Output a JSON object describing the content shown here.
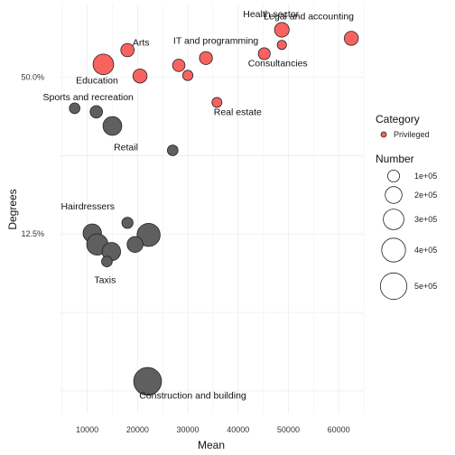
{
  "chart_data": {
    "type": "scatter",
    "xlabel": "Mean",
    "ylabel": "Degrees",
    "xlim": [
      4500,
      65000
    ],
    "ylim": [
      0.0256,
      0.95
    ],
    "y_scale": "log",
    "x_ticks": [
      {
        "value": 10000,
        "label": "10000"
      },
      {
        "value": 20000,
        "label": "20000"
      },
      {
        "value": 30000,
        "label": "30000"
      },
      {
        "value": 40000,
        "label": "40000"
      },
      {
        "value": 50000,
        "label": "50000"
      },
      {
        "value": 60000,
        "label": "60000"
      }
    ],
    "y_ticks": [
      {
        "value": 0.125,
        "label": "12.5%"
      },
      {
        "value": 0.5,
        "label": "50.0%"
      }
    ],
    "grid": true,
    "colors": {
      "privileged": "#f8635f",
      "other": "#5f5f5f",
      "outline": "#222222",
      "grid": "#ececec"
    },
    "points": [
      {
        "label": "Health sector",
        "x": 48700,
        "y": 0.76,
        "number": 150000,
        "category": "privileged"
      },
      {
        "label": "Legal and accounting",
        "x": 62500,
        "y": 0.705,
        "number": 140000,
        "category": "privileged"
      },
      {
        "label": "Arts",
        "x": 18000,
        "y": 0.635,
        "number": 125000,
        "category": "privileged"
      },
      {
        "label": "IT and programming",
        "x": 33600,
        "y": 0.592,
        "number": 120000,
        "category": "privileged"
      },
      {
        "label": "Consultancies",
        "x": 45200,
        "y": 0.615,
        "number": 100000,
        "category": "privileged"
      },
      {
        "label": "",
        "x": 48700,
        "y": 0.665,
        "number": 60000,
        "category": "privileged"
      },
      {
        "label": "",
        "x": 28200,
        "y": 0.555,
        "number": 110000,
        "category": "privileged"
      },
      {
        "label": "Education",
        "x": 13200,
        "y": 0.56,
        "number": 300000,
        "category": "privileged"
      },
      {
        "label": "",
        "x": 20500,
        "y": 0.505,
        "number": 140000,
        "category": "privileged"
      },
      {
        "label": "",
        "x": 30000,
        "y": 0.508,
        "number": 75000,
        "category": "privileged"
      },
      {
        "label": "Real estate",
        "x": 35800,
        "y": 0.4,
        "number": 70000,
        "category": "privileged"
      },
      {
        "label": "Sports and recreation",
        "x": 7500,
        "y": 0.38,
        "number": 80000,
        "category": "other"
      },
      {
        "label": "",
        "x": 11800,
        "y": 0.368,
        "number": 110000,
        "category": "other"
      },
      {
        "label": "Retail",
        "x": 15000,
        "y": 0.325,
        "number": 250000,
        "category": "other"
      },
      {
        "label": "",
        "x": 27000,
        "y": 0.262,
        "number": 80000,
        "category": "other"
      },
      {
        "label": "Hairdressers",
        "x": 18000,
        "y": 0.138,
        "number": 90000,
        "category": "other"
      },
      {
        "label": "",
        "x": 11000,
        "y": 0.126,
        "number": 240000,
        "category": "other"
      },
      {
        "label": "",
        "x": 12000,
        "y": 0.114,
        "number": 320000,
        "category": "other"
      },
      {
        "label": "",
        "x": 22200,
        "y": 0.124,
        "number": 380000,
        "category": "other"
      },
      {
        "label": "",
        "x": 19500,
        "y": 0.114,
        "number": 180000,
        "category": "other"
      },
      {
        "label": "",
        "x": 14800,
        "y": 0.107,
        "number": 240000,
        "category": "other"
      },
      {
        "label": "Taxis",
        "x": 13900,
        "y": 0.098,
        "number": 80000,
        "category": "other"
      },
      {
        "label": "Construction and building",
        "x": 22000,
        "y": 0.034,
        "number": 550000,
        "category": "other"
      }
    ],
    "legend": {
      "category_title": "Category",
      "category_entry": "Privileged",
      "size_title": "Number",
      "size_entries": [
        {
          "value": 100000,
          "label": "1e+05"
        },
        {
          "value": 200000,
          "label": "2e+05"
        },
        {
          "value": 300000,
          "label": "3e+05"
        },
        {
          "value": 400000,
          "label": "4e+05"
        },
        {
          "value": 500000,
          "label": "5e+05"
        }
      ]
    }
  }
}
